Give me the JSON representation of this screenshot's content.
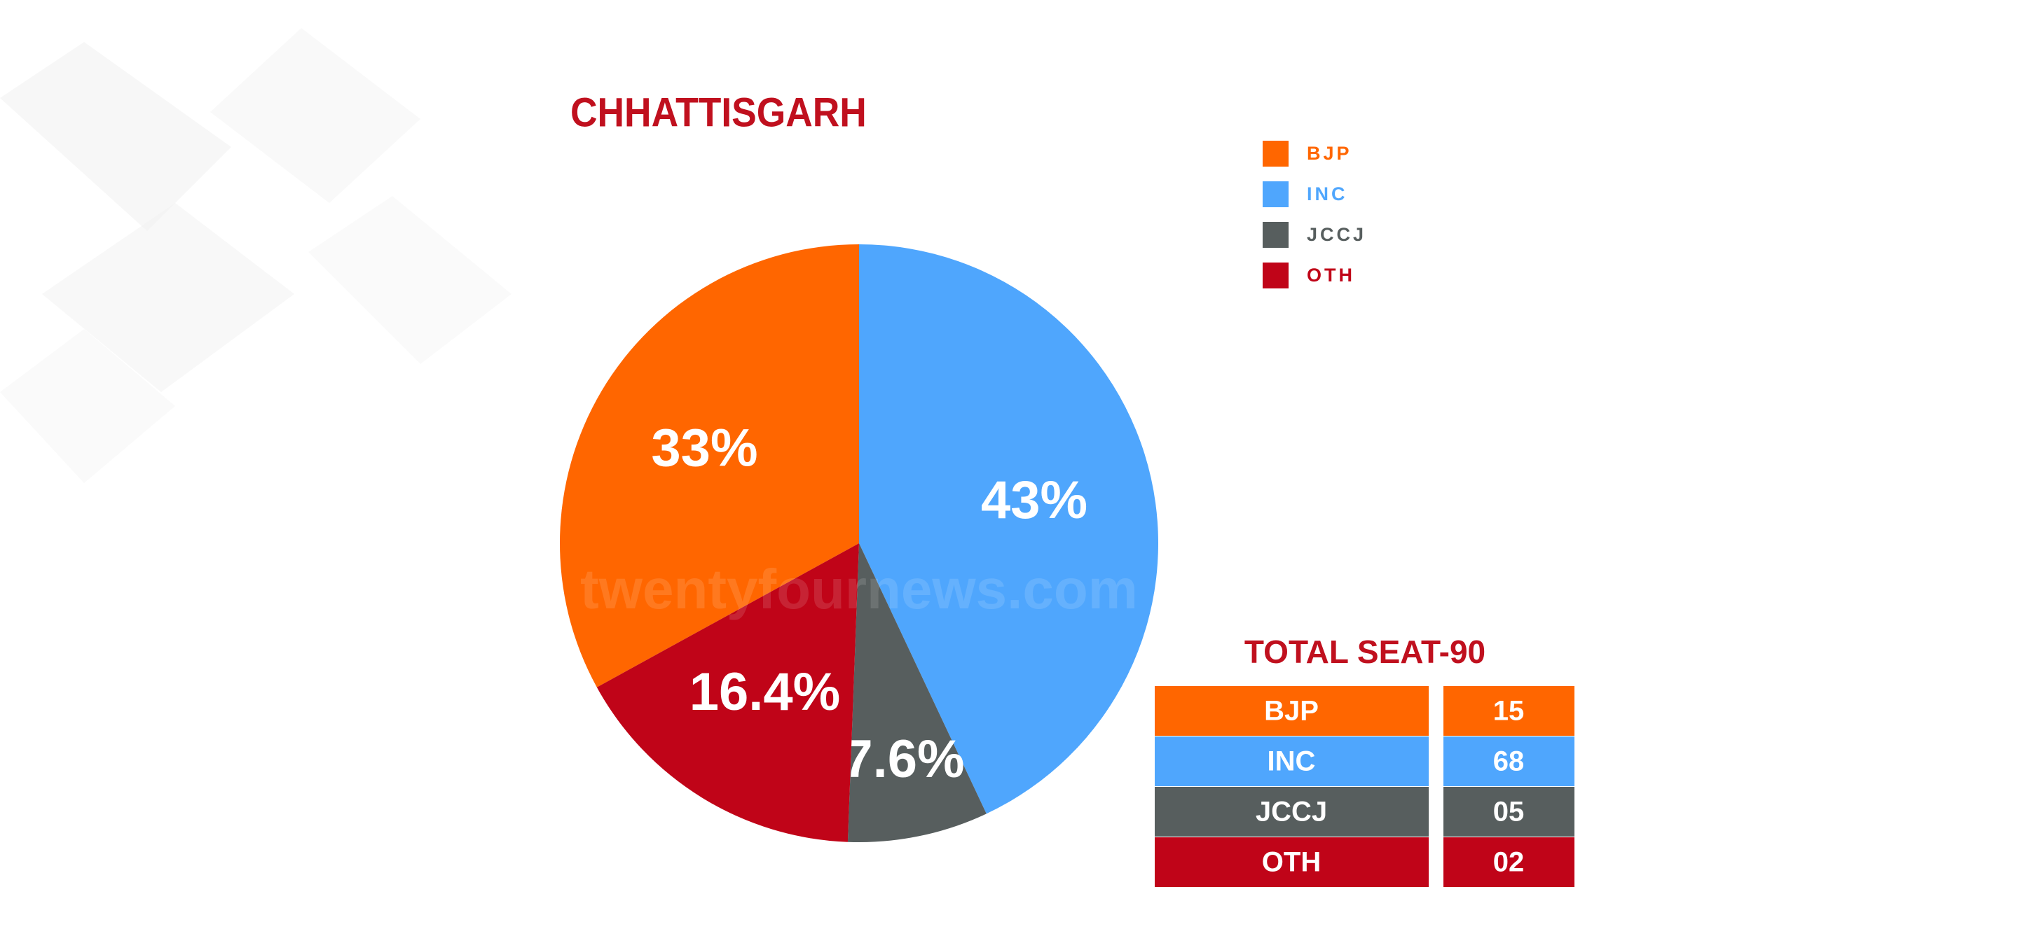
{
  "chart_data": {
    "type": "pie",
    "title": "CHHATTISGARH",
    "categories": [
      "BJP",
      "INC",
      "JCCJ",
      "OTH"
    ],
    "values": [
      33,
      43,
      7.6,
      16.4
    ],
    "value_labels": [
      "33%",
      "43%",
      "7.6%",
      "16.4%"
    ],
    "colors": [
      "#ff6600",
      "#4fa6fd",
      "#575e5e",
      "#c00418"
    ],
    "legend": "top-right",
    "watermark": "twentyfournews.com"
  },
  "table": {
    "title": "TOTAL SEAT-90",
    "rows": [
      [
        "BJP",
        "15"
      ],
      [
        "INC",
        "68"
      ],
      [
        "JCCJ",
        "05"
      ],
      [
        "OTH",
        "02"
      ]
    ]
  }
}
